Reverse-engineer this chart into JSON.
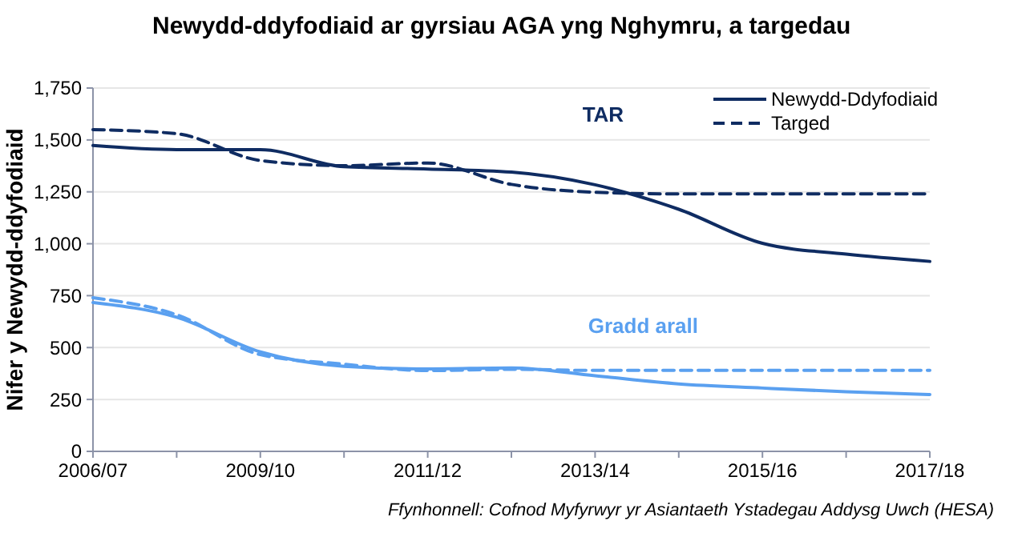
{
  "chart_data": {
    "type": "line",
    "title": "Newydd-ddyfodiaid ar gyrsiau AGA yng Nghymru, a targedau",
    "ylabel": "Nifer y Newydd-ddyfodiaid",
    "categories": [
      "2006/07",
      null,
      "2009/10",
      null,
      "2011/12",
      null,
      "2013/14",
      null,
      "2015/16",
      null,
      "2017/18"
    ],
    "series": [
      {
        "name": "Newydd-Ddyfodiaid",
        "color": "#0f2c62",
        "line_style": "solid",
        "values": [
          1473,
          1453,
          1453,
          1371,
          1360,
          1345,
          1284,
          1166,
          1002,
          950,
          915
        ]
      },
      {
        "name": "Targed",
        "color": "#0f2c62",
        "line_style": "dashed",
        "values": [
          1550,
          1530,
          1401,
          1376,
          1389,
          1286,
          1248,
          1240,
          1240,
          1240,
          1240
        ]
      },
      {
        "color": "#5aa0f0",
        "line_style": "solid",
        "values": [
          717,
          646,
          479,
          410,
          397,
          402,
          364,
          325,
          305,
          287,
          274
        ]
      },
      {
        "color": "#5aa0f0",
        "line_style": "dashed",
        "values": [
          740,
          658,
          466,
          420,
          389,
          395,
          390,
          390,
          390,
          390,
          390
        ]
      }
    ],
    "ylim": [
      0,
      1750
    ],
    "yticks": [
      {
        "value": 0,
        "label": "0"
      },
      {
        "value": 250,
        "label": "250"
      },
      {
        "value": 500,
        "label": "500"
      },
      {
        "value": 750,
        "label": "750"
      },
      {
        "value": 1000,
        "label": "1,000"
      },
      {
        "value": 1250,
        "label": "1,250"
      },
      {
        "value": 1500,
        "label": "1,500"
      },
      {
        "value": 1750,
        "label": "1,750"
      }
    ],
    "grid": "y",
    "legend": "top right",
    "marker": "none",
    "annotations": [
      "TAR",
      "Gradd arall",
      "Ffynhonnell: Cofnod Myfyrwyr yr Asiantaeth Ystadegau Addysg Uwch (HESA)"
    ]
  }
}
